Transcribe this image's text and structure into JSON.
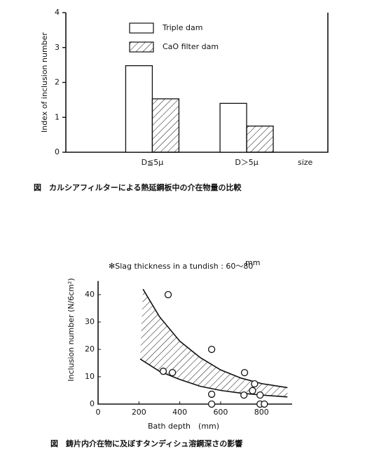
{
  "chart_data": [
    {
      "type": "bar",
      "ylabel": "Index of inclusion number",
      "categories": [
        "D≦5μ",
        "D＞5μ"
      ],
      "xlabel": "size",
      "series": [
        {
          "name": "Triple dam",
          "color": "#ffffff",
          "values": [
            2.48,
            1.4
          ]
        },
        {
          "name": "CaO filter dam",
          "color": "#ffffff",
          "pattern": "hatch",
          "values": [
            1.53,
            0.75
          ]
        }
      ],
      "ylim": [
        0,
        4
      ],
      "yticks": [
        0,
        1,
        2,
        3,
        4
      ],
      "caption": "図　カルシアフィルターによる熱延鋼板中の介在物量の比較"
    },
    {
      "type": "scatter",
      "annotation": "✻Slag thickness in a tundish : 60～80",
      "annotation_unit": "mm",
      "xlabel": "Bath depth　(mm)",
      "ylabel": "Inclusion number (N/6cm²)",
      "x": [
        343,
        556,
        319,
        364,
        556,
        556,
        717,
        766,
        756,
        793,
        714,
        793,
        814
      ],
      "values": [
        40,
        20,
        12,
        11.5,
        3.6,
        0,
        11.5,
        7.4,
        4.9,
        3.3,
        3.3,
        0,
        0
      ],
      "band": [
        {
          "x": [
            220,
            300,
            400,
            500,
            600,
            700,
            800,
            927
          ],
          "values": [
            42,
            32,
            23,
            17,
            12.5,
            9.5,
            7.5,
            6
          ]
        },
        {
          "x": [
            206,
            300,
            400,
            500,
            600,
            700,
            800,
            927
          ],
          "values": [
            16.5,
            12,
            9,
            6.5,
            5,
            4,
            3.3,
            2.6
          ]
        }
      ],
      "xlim": [
        0,
        950
      ],
      "xticks": [
        0,
        200,
        400,
        600,
        800
      ],
      "ylim": [
        0,
        45
      ],
      "yticks": [
        0,
        10,
        20,
        30,
        40
      ],
      "caption": "図　鋳片内介在物に及ぼすタンディシュ溶鋼深さの影響"
    }
  ]
}
